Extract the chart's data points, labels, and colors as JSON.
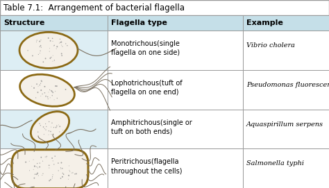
{
  "title": "Table 7.1:  Arrangement of bacterial flagella",
  "col_headers": [
    "Structure",
    "Flagella type",
    "Example"
  ],
  "rows": [
    {
      "flagella_type": "Monotrichous(single\nflagella on one side)",
      "example": "Vibrio cholera"
    },
    {
      "flagella_type": "Lophotrichous(tuft of\nflagella on one end)",
      "example": "Pseudomonas fluorescens"
    },
    {
      "flagella_type": "Amphitrichous(single or\ntuft on both ends)",
      "example": "Aquaspirillum serpens"
    },
    {
      "flagella_type": "Peritrichous(flagella\nthroughout the cells)",
      "example": "Salmonella typhi"
    }
  ],
  "header_bg": "#c5dfe8",
  "row_bg_alt": "#ddeef4",
  "row_bg_white": "#ffffff",
  "border_color": "#999999",
  "title_fontsize": 8.5,
  "header_fontsize": 8,
  "cell_fontsize": 7,
  "example_fontsize": 7,
  "fig_width": 4.74,
  "fig_height": 2.71,
  "dpi": 100,
  "body_edge_color": "#8B6914",
  "body_fill_color": "#f5f0e8",
  "flagella_color": "#7a7060",
  "dot_color": "#888888"
}
